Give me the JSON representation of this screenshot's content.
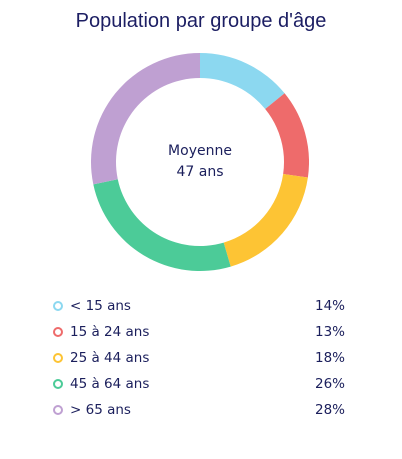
{
  "chart_data": {
    "type": "pie",
    "title": "Population par groupe d'âge",
    "center": {
      "label": "Moyenne",
      "value": "47 ans"
    },
    "categories": [
      "< 15 ans",
      "15 à 24 ans",
      "25 à 44 ans",
      "45 à 64 ans",
      "> 65 ans"
    ],
    "values": [
      14,
      13,
      18,
      26,
      28
    ],
    "value_labels": [
      "14%",
      "13%",
      "18%",
      "26%",
      "28%"
    ],
    "colors": [
      "#8cd8f0",
      "#ee6b6b",
      "#fdc434",
      "#4ccb98",
      "#bfa0d2"
    ]
  }
}
